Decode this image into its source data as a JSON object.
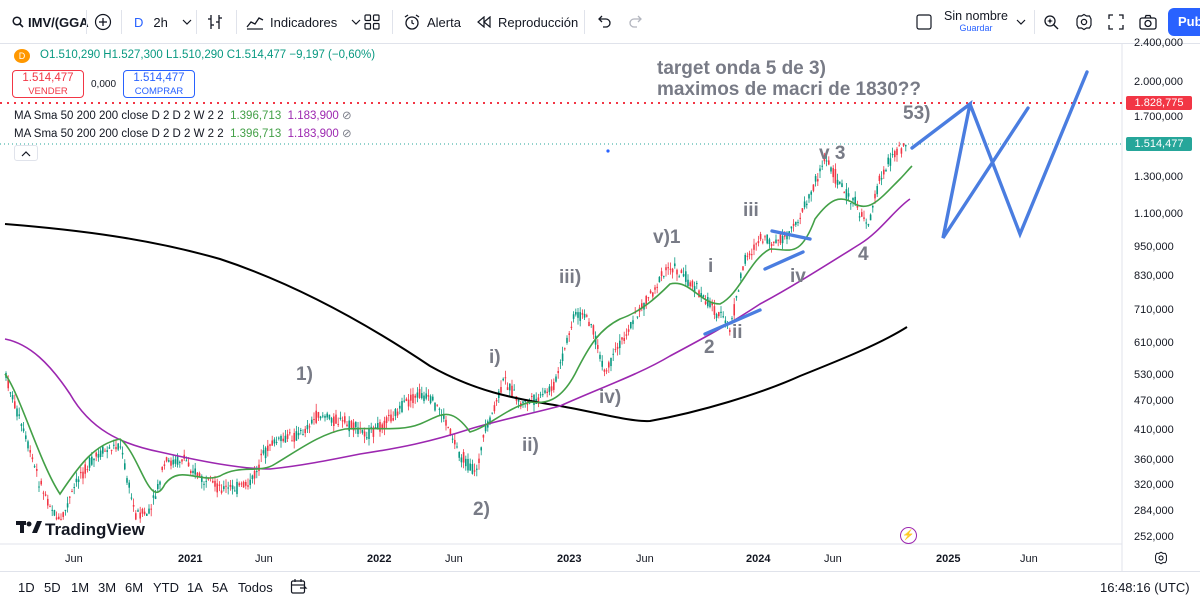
{
  "toolbar": {
    "symbol": "IMV/(GGA",
    "interval": "2h",
    "interval_prefix": "D",
    "indicators": "Indicadores",
    "alert": "Alerta",
    "replay": "Reproducción",
    "layout_name": "Sin nombre",
    "layout_sub": "Guardar",
    "publish": "Pub"
  },
  "legend": {
    "source_badge": "D",
    "ohlc": "O1.510,290 H1.527,300 L1.510,290 C1.514,477 −9,197 (−0,60%)",
    "sell_price": "1.514,477",
    "sell_label": "VENDER",
    "spread": "0,000",
    "buy_price": "1.514,477",
    "buy_label": "COMPRAR",
    "ma_rows": [
      {
        "label": "MA  Sma 50 200 200 close D 2 D 2 W 2 2",
        "v1": "1.396,713",
        "v2": "1.183,900"
      },
      {
        "label": "MA  Sma 50 200 200 close D 2 D 2 W 2 2",
        "v1": "1.396,713",
        "v2": "1.183,900"
      }
    ]
  },
  "price_axis": [
    "2.400,000",
    "2.000,000",
    "1.700,000",
    "1.300,000",
    "1.100,000",
    "950,000",
    "830,000",
    "710,000",
    "610,000",
    "530,000",
    "470,000",
    "410,000",
    "360,000",
    "320,000",
    "284,000",
    "252,000"
  ],
  "price_tags": {
    "target": "1.828,775",
    "last": "1.514,477"
  },
  "time_axis": [
    {
      "label": "Jun",
      "year": false
    },
    {
      "label": "2021",
      "year": true
    },
    {
      "label": "Jun",
      "year": false
    },
    {
      "label": "2022",
      "year": true
    },
    {
      "label": "Jun",
      "year": false
    },
    {
      "label": "2023",
      "year": true
    },
    {
      "label": "Jun",
      "year": false
    },
    {
      "label": "2024",
      "year": true
    },
    {
      "label": "Jun",
      "year": false
    },
    {
      "label": "2025",
      "year": true
    },
    {
      "label": "Jun",
      "year": false
    }
  ],
  "annotations": {
    "title_line1": "target onda 5 de 3)",
    "title_line2": "maximos de macri de 1830??",
    "w1": "1)",
    "w2": "2)",
    "wi": "i)",
    "wii": "ii)",
    "wiii": "iii)",
    "wiv": "iv)",
    "wv1": "v)1",
    "w2b": "2",
    "wiib": "ii",
    "wi2": "i",
    "wiii2": "iii",
    "wiv2": "iv",
    "wv3": "v 3",
    "w4": "4",
    "w53": "53)"
  },
  "watermark": "TradingView",
  "bottom": {
    "ranges": [
      "1D",
      "5D",
      "1M",
      "3M",
      "6M",
      "YTD",
      "1A",
      "5A",
      "Todos"
    ],
    "clock": "16:48:16 (UTC)"
  },
  "colors": {
    "accent": "#2962ff",
    "up": "#089981",
    "down": "#f23645",
    "ma50": "#43a047",
    "ma200": "#9c27b0",
    "ma_w": "#000000",
    "drawing": "#4a7de0"
  }
}
